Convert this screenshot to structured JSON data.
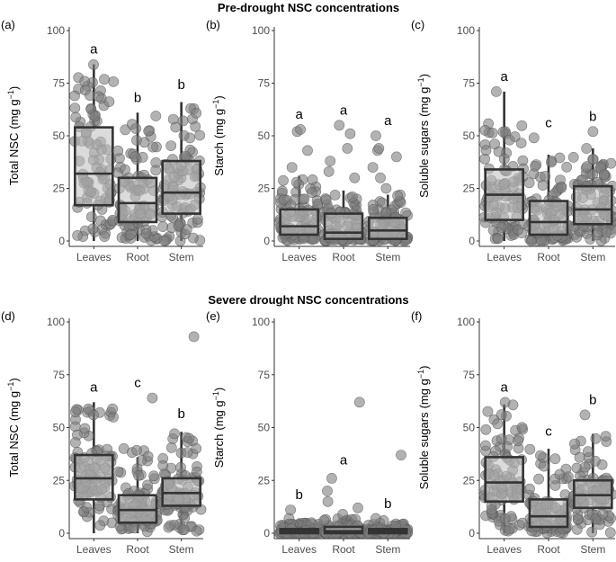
{
  "figure": {
    "section_titles": [
      "Pre-drought NSC concentrations",
      "Severe drought NSC concentrations"
    ]
  },
  "chart_data": [
    {
      "type": "box",
      "panel_label": "(a)",
      "section": "Pre-drought NSC concentrations",
      "ylabel": "Total NSC",
      "yunit": "(mg g",
      "yunit_sup": "−1",
      "yunit_close": ")",
      "ylim": [
        0,
        100
      ],
      "yticks": [
        "0",
        "25",
        "50",
        "75",
        "100"
      ],
      "categories": [
        "Leaves",
        "Root",
        "Stem"
      ],
      "letters": [
        "a",
        "b",
        "b"
      ],
      "boxes": [
        {
          "q1": 17,
          "median": 32,
          "q3": 54,
          "whisker_low": 0,
          "whisker_high": 84
        },
        {
          "q1": 9,
          "median": 18,
          "q3": 30,
          "whisker_low": 0,
          "whisker_high": 61
        },
        {
          "q1": 13,
          "median": 23,
          "q3": 38,
          "whisker_low": 0,
          "whisker_high": 66
        }
      ],
      "point_range": [
        [
          0,
          84
        ],
        [
          0,
          61
        ],
        [
          0,
          67
        ]
      ],
      "outliers": [
        [],
        [],
        []
      ]
    },
    {
      "type": "box",
      "panel_label": "(b)",
      "section": "Pre-drought NSC concentrations",
      "ylabel": "Starch",
      "yunit": "(mg g",
      "yunit_sup": "−1",
      "yunit_close": ")",
      "ylim": [
        0,
        100
      ],
      "yticks": [
        "0",
        "25",
        "50",
        "75",
        "100"
      ],
      "categories": [
        "Leaves",
        "Root",
        "Stem"
      ],
      "letters": [
        "a",
        "a",
        "a"
      ],
      "boxes": [
        {
          "q1": 3,
          "median": 7,
          "q3": 15,
          "whisker_low": 0,
          "whisker_high": 31
        },
        {
          "q1": 1,
          "median": 4,
          "q3": 13,
          "whisker_low": 0,
          "whisker_high": 24
        },
        {
          "q1": 1,
          "median": 5,
          "q3": 11,
          "whisker_low": 0,
          "whisker_high": 22
        }
      ],
      "point_range": [
        [
          0,
          30
        ],
        [
          0,
          23
        ],
        [
          0,
          22
        ]
      ],
      "outliers": [
        [
          35,
          43,
          52,
          53
        ],
        [
          30,
          33,
          38,
          44,
          51,
          55
        ],
        [
          25,
          30,
          35,
          40,
          43,
          44,
          50
        ]
      ]
    },
    {
      "type": "box",
      "panel_label": "(c)",
      "section": "Pre-drought NSC concentrations",
      "ylabel": "Soluble sugars",
      "yunit": "(mg g",
      "yunit_sup": "−1",
      "yunit_close": ")",
      "ylim": [
        0,
        100
      ],
      "yticks": [
        "0",
        "25",
        "50",
        "75",
        "100"
      ],
      "categories": [
        "Leaves",
        "Root",
        "Stem"
      ],
      "letters": [
        "a",
        "c",
        "b"
      ],
      "boxes": [
        {
          "q1": 10,
          "median": 22,
          "q3": 34,
          "whisker_low": 0,
          "whisker_high": 71
        },
        {
          "q1": 3,
          "median": 9,
          "q3": 19,
          "whisker_low": 0,
          "whisker_high": 41
        },
        {
          "q1": 8,
          "median": 15,
          "q3": 26,
          "whisker_low": 0,
          "whisker_high": 44
        }
      ],
      "point_range": [
        [
          0,
          57
        ],
        [
          0,
          40
        ],
        [
          0,
          40
        ]
      ],
      "outliers": [
        [
          71
        ],
        [
          49
        ],
        [
          44,
          52
        ]
      ]
    },
    {
      "type": "box",
      "panel_label": "(d)",
      "section": "Severe drought NSC concentrations",
      "ylabel": "Total NSC",
      "yunit": "(mg g",
      "yunit_sup": "−1",
      "yunit_close": ")",
      "ylim": [
        0,
        100
      ],
      "yticks": [
        "0",
        "25",
        "50",
        "75",
        "100"
      ],
      "categories": [
        "Leaves",
        "Root",
        "Stem"
      ],
      "letters": [
        "a",
        "c",
        "b"
      ],
      "boxes": [
        {
          "q1": 16,
          "median": 26,
          "q3": 37,
          "whisker_low": 0,
          "whisker_high": 62
        },
        {
          "q1": 5,
          "median": 11,
          "q3": 18,
          "whisker_low": 0,
          "whisker_high": 36
        },
        {
          "q1": 13,
          "median": 19,
          "q3": 26,
          "whisker_low": 0,
          "whisker_high": 48
        }
      ],
      "point_range": [
        [
          0,
          62
        ],
        [
          0,
          41
        ],
        [
          0,
          48
        ]
      ],
      "outliers": [
        [],
        [
          64
        ],
        [
          93
        ]
      ]
    },
    {
      "type": "box",
      "panel_label": "(e)",
      "section": "Severe drought NSC concentrations",
      "ylabel": "Starch",
      "yunit": "(mg g",
      "yunit_sup": "−1",
      "yunit_close": ")",
      "ylim": [
        0,
        100
      ],
      "yticks": [
        "0",
        "25",
        "50",
        "75",
        "100"
      ],
      "categories": [
        "Leaves",
        "Root",
        "Stem"
      ],
      "letters": [
        "b",
        "a",
        "b"
      ],
      "boxes": [
        {
          "q1": 0,
          "median": 1,
          "q3": 2,
          "whisker_low": 0,
          "whisker_high": 4
        },
        {
          "q1": 0,
          "median": 1,
          "q3": 3,
          "whisker_low": 0,
          "whisker_high": 7
        },
        {
          "q1": 0,
          "median": 1,
          "q3": 2,
          "whisker_low": 0,
          "whisker_high": 4
        }
      ],
      "point_range": [
        [
          0,
          5
        ],
        [
          0,
          7
        ],
        [
          0,
          5
        ]
      ],
      "outliers": [
        [
          7,
          11
        ],
        [
          9,
          12,
          15,
          20,
          26,
          62
        ],
        [
          6,
          7,
          37
        ]
      ]
    },
    {
      "type": "box",
      "panel_label": "(f)",
      "section": "Severe drought NSC concentrations",
      "ylabel": "Soluble sugars",
      "yunit": "(mg g",
      "yunit_sup": "−1",
      "yunit_close": ")",
      "ylim": [
        0,
        100
      ],
      "yticks": [
        "0",
        "25",
        "50",
        "75",
        "100"
      ],
      "categories": [
        "Leaves",
        "Root",
        "Stem"
      ],
      "letters": [
        "a",
        "c",
        "b"
      ],
      "boxes": [
        {
          "q1": 15,
          "median": 24,
          "q3": 36,
          "whisker_low": 0,
          "whisker_high": 61
        },
        {
          "q1": 3,
          "median": 8,
          "q3": 16,
          "whisker_low": 0,
          "whisker_high": 40
        },
        {
          "q1": 12,
          "median": 18,
          "q3": 25,
          "whisker_low": 0,
          "whisker_high": 47
        }
      ],
      "point_range": [
        [
          0,
          62
        ],
        [
          0,
          41
        ],
        [
          0,
          47
        ]
      ],
      "outliers": [
        [],
        [],
        [
          56
        ]
      ]
    }
  ]
}
